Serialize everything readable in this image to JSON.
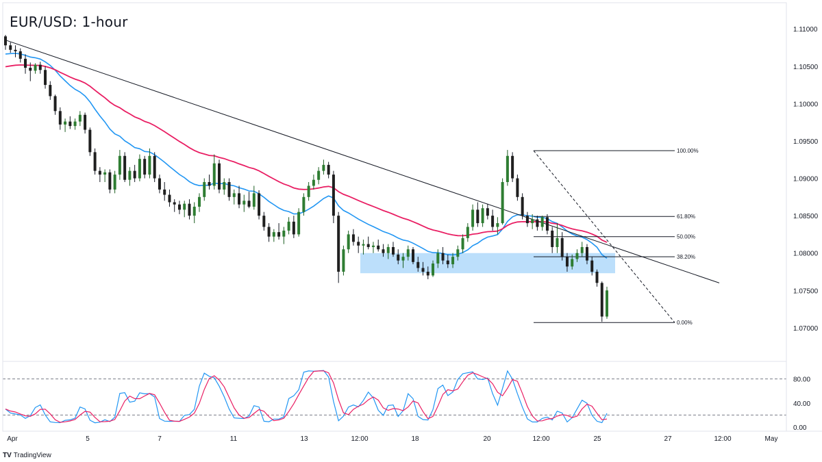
{
  "chart_data": {
    "type": "candlestick",
    "title": "EUR/USD: 1-hour",
    "price_axis": {
      "ticks": [
        "1.11000",
        "1.10500",
        "1.10000",
        "1.09500",
        "1.09000",
        "1.08500",
        "1.08000",
        "1.07500",
        "1.07000"
      ],
      "range": [
        1.0655,
        1.1135
      ]
    },
    "time_axis": {
      "ticks": [
        "Apr",
        "5",
        "7",
        "11",
        "13",
        "12:00",
        "18",
        "20",
        "12:00",
        "25",
        "27",
        "12:00",
        "May"
      ]
    },
    "candles_ohlc_approx": [
      [
        1.109,
        1.1092,
        1.1072,
        1.1078
      ],
      [
        1.1078,
        1.1082,
        1.1068,
        1.1072
      ],
      [
        1.1072,
        1.1078,
        1.1062,
        1.107
      ],
      [
        1.107,
        1.1074,
        1.1055,
        1.106
      ],
      [
        1.106,
        1.1066,
        1.104,
        1.1048
      ],
      [
        1.1048,
        1.1055,
        1.103,
        1.1044
      ],
      [
        1.1044,
        1.1054,
        1.104,
        1.1052
      ],
      [
        1.1052,
        1.1056,
        1.104,
        1.1045
      ],
      [
        1.1045,
        1.105,
        1.102,
        1.1025
      ],
      [
        1.1025,
        1.103,
        1.1005,
        1.101
      ],
      [
        1.101,
        1.1012,
        1.0985,
        1.099
      ],
      [
        1.099,
        1.0995,
        1.0965,
        1.0972
      ],
      [
        1.0972,
        1.098,
        1.0962,
        1.0976
      ],
      [
        1.0976,
        1.0983,
        1.0966,
        1.097
      ],
      [
        1.097,
        1.098,
        1.0965,
        1.0976
      ],
      [
        1.0976,
        1.099,
        1.097,
        1.0985
      ],
      [
        1.0985,
        1.0988,
        1.096,
        1.0965
      ],
      [
        1.0965,
        1.0968,
        1.093,
        1.0935
      ],
      [
        1.0935,
        1.094,
        1.0905,
        1.091
      ],
      [
        1.091,
        1.0915,
        1.0895,
        1.0905
      ],
      [
        1.0905,
        1.0912,
        1.0895,
        1.0908
      ],
      [
        1.0908,
        1.0912,
        1.088,
        1.0885
      ],
      [
        1.0885,
        1.091,
        1.088,
        1.0905
      ],
      [
        1.0905,
        1.0938,
        1.0898,
        1.093
      ],
      [
        1.093,
        1.0935,
        1.0895,
        1.0898
      ],
      [
        1.0898,
        1.0915,
        1.089,
        1.091
      ],
      [
        1.091,
        1.0918,
        1.0895,
        1.09
      ],
      [
        1.09,
        1.0932,
        1.0896,
        1.0926
      ],
      [
        1.0926,
        1.093,
        1.09,
        1.0905
      ],
      [
        1.0905,
        1.094,
        1.09,
        1.093
      ],
      [
        1.093,
        1.0935,
        1.0895,
        1.09
      ],
      [
        1.09,
        1.0905,
        1.088,
        1.0885
      ],
      [
        1.0885,
        1.0895,
        1.087,
        1.0878
      ],
      [
        1.0878,
        1.0885,
        1.0862,
        1.0868
      ],
      [
        1.0868,
        1.0872,
        1.0855,
        1.0865
      ],
      [
        1.0865,
        1.087,
        1.0852,
        1.0858
      ],
      [
        1.0858,
        1.087,
        1.0848,
        1.0866
      ],
      [
        1.0866,
        1.0872,
        1.0845,
        1.085
      ],
      [
        1.085,
        1.0868,
        1.084,
        1.0862
      ],
      [
        1.0862,
        1.088,
        1.0855,
        1.0875
      ],
      [
        1.0875,
        1.09,
        1.087,
        1.0895
      ],
      [
        1.0895,
        1.0905,
        1.0885,
        1.089
      ],
      [
        1.089,
        1.0932,
        1.0885,
        1.092
      ],
      [
        1.092,
        1.0925,
        1.088,
        1.0885
      ],
      [
        1.0885,
        1.09,
        1.0878,
        1.0895
      ],
      [
        1.0895,
        1.09,
        1.087,
        1.0875
      ],
      [
        1.0875,
        1.0885,
        1.0865,
        1.088
      ],
      [
        1.088,
        1.089,
        1.086,
        1.0865
      ],
      [
        1.0865,
        1.0878,
        1.0855,
        1.087
      ],
      [
        1.087,
        1.0882,
        1.086,
        1.0862
      ],
      [
        1.0862,
        1.089,
        1.0858,
        1.088
      ],
      [
        1.088,
        1.0884,
        1.0845,
        1.085
      ],
      [
        1.085,
        1.0855,
        1.083,
        1.0835
      ],
      [
        1.0835,
        1.084,
        1.0815,
        1.0822
      ],
      [
        1.0822,
        1.0832,
        1.0815,
        1.0828
      ],
      [
        1.0828,
        1.084,
        1.0818,
        1.0822
      ],
      [
        1.0822,
        1.0835,
        1.0812,
        1.083
      ],
      [
        1.083,
        1.0848,
        1.0825,
        1.0842
      ],
      [
        1.0842,
        1.085,
        1.082,
        1.0825
      ],
      [
        1.0825,
        1.086,
        1.0822,
        1.0855
      ],
      [
        1.0855,
        1.088,
        1.085,
        1.0875
      ],
      [
        1.0875,
        1.0895,
        1.087,
        1.089
      ],
      [
        1.089,
        1.0905,
        1.0885,
        1.0898
      ],
      [
        1.0898,
        1.0915,
        1.0892,
        1.091
      ],
      [
        1.091,
        1.0925,
        1.0905,
        1.0918
      ],
      [
        1.0918,
        1.0922,
        1.09,
        1.0905
      ],
      [
        1.0905,
        1.091,
        1.084,
        1.085
      ],
      [
        1.085,
        1.0855,
        1.076,
        1.0775
      ],
      [
        1.0775,
        1.081,
        1.077,
        1.0805
      ],
      [
        1.0805,
        1.083,
        1.08,
        1.0825
      ],
      [
        1.0825,
        1.0832,
        1.081,
        1.0815
      ],
      [
        1.0815,
        1.0822,
        1.08,
        1.081
      ],
      [
        1.081,
        1.0818,
        1.0798,
        1.0812
      ],
      [
        1.0812,
        1.0822,
        1.0805,
        1.0808
      ],
      [
        1.0808,
        1.0815,
        1.08,
        1.081
      ],
      [
        1.081,
        1.0818,
        1.0802,
        1.0805
      ],
      [
        1.0805,
        1.0812,
        1.0795,
        1.08
      ],
      [
        1.08,
        1.0812,
        1.0792,
        1.0808
      ],
      [
        1.0808,
        1.0815,
        1.0795,
        1.0798
      ],
      [
        1.0798,
        1.0805,
        1.0785,
        1.079
      ],
      [
        1.079,
        1.08,
        1.078,
        1.0795
      ],
      [
        1.0795,
        1.081,
        1.079,
        1.0805
      ],
      [
        1.0805,
        1.0808,
        1.0785,
        1.0788
      ],
      [
        1.0788,
        1.0795,
        1.0775,
        1.078
      ],
      [
        1.078,
        1.0788,
        1.077,
        1.0775
      ],
      [
        1.0775,
        1.0782,
        1.0765,
        1.077
      ],
      [
        1.077,
        1.079,
        1.0768,
        1.0786
      ],
      [
        1.0786,
        1.0805,
        1.078,
        1.08
      ],
      [
        1.08,
        1.0808,
        1.0785,
        1.079
      ],
      [
        1.079,
        1.0798,
        1.078,
        1.0785
      ],
      [
        1.0785,
        1.08,
        1.078,
        1.0795
      ],
      [
        1.0795,
        1.081,
        1.079,
        1.0805
      ],
      [
        1.0805,
        1.0825,
        1.08,
        1.082
      ],
      [
        1.082,
        1.084,
        1.0815,
        1.0835
      ],
      [
        1.0835,
        1.0865,
        1.083,
        1.0858
      ],
      [
        1.0858,
        1.0868,
        1.0835,
        1.084
      ],
      [
        1.084,
        1.0865,
        1.0835,
        1.086
      ],
      [
        1.086,
        1.0866,
        1.0845,
        1.085
      ],
      [
        1.085,
        1.0858,
        1.083,
        1.0835
      ],
      [
        1.0835,
        1.0848,
        1.0825,
        1.084
      ],
      [
        1.084,
        1.09,
        1.0838,
        1.0895
      ],
      [
        1.0895,
        1.0938,
        1.089,
        1.093
      ],
      [
        1.093,
        1.0935,
        1.0895,
        1.09
      ],
      [
        1.09,
        1.0905,
        1.087,
        1.0875
      ],
      [
        1.0875,
        1.088,
        1.0845,
        1.085
      ],
      [
        1.085,
        1.0855,
        1.0835,
        1.084
      ],
      [
        1.084,
        1.0852,
        1.0832,
        1.0845
      ],
      [
        1.0845,
        1.085,
        1.083,
        1.0835
      ],
      [
        1.0835,
        1.085,
        1.083,
        1.0848
      ],
      [
        1.0848,
        1.0852,
        1.0825,
        1.083
      ],
      [
        1.083,
        1.0835,
        1.08,
        1.0808
      ],
      [
        1.0808,
        1.084,
        1.08,
        1.082
      ],
      [
        1.082,
        1.0828,
        1.079,
        1.0795
      ],
      [
        1.0795,
        1.08,
        1.0775,
        1.0782
      ],
      [
        1.0782,
        1.0798,
        1.0778,
        1.0792
      ],
      [
        1.0792,
        1.0805,
        1.0788,
        1.08
      ],
      [
        1.08,
        1.0815,
        1.0795,
        1.0808
      ],
      [
        1.0808,
        1.0812,
        1.0785,
        1.079
      ],
      [
        1.079,
        1.0795,
        1.077,
        1.0775
      ],
      [
        1.0775,
        1.0778,
        1.0755,
        1.076
      ],
      [
        1.076,
        1.0762,
        1.0708,
        1.0715
      ],
      [
        1.0715,
        1.0755,
        1.0712,
        1.075
      ]
    ],
    "moving_averages": [
      {
        "color": "#2196f3",
        "note": "faster MA"
      },
      {
        "color": "#e91e63",
        "note": "slower MA"
      }
    ],
    "trendline": {
      "from_price": 1.1085,
      "to_price": 1.076,
      "color": "#131722"
    },
    "demand_zone": {
      "top": 1.08,
      "bottom": 1.0773,
      "color": "#90caf9"
    },
    "fibonacci": {
      "high": 1.0937,
      "low": 1.0707,
      "levels": [
        {
          "label": "100.00%",
          "price": 1.0937
        },
        {
          "label": "61.80%",
          "price": 1.0849
        },
        {
          "label": "50.00%",
          "price": 1.0822
        },
        {
          "label": "38.20%",
          "price": 1.0795
        },
        {
          "label": "0.00%",
          "price": 1.0707
        }
      ]
    },
    "stochastic": {
      "ticks": [
        "80.00",
        "40.00",
        "0.00"
      ],
      "overbought": 80,
      "oversold": 20,
      "range": [
        0,
        100
      ],
      "k_color": "#2196f3",
      "d_color": "#e91e63"
    }
  },
  "branding": {
    "logo": "TV",
    "name": "TradingView"
  }
}
